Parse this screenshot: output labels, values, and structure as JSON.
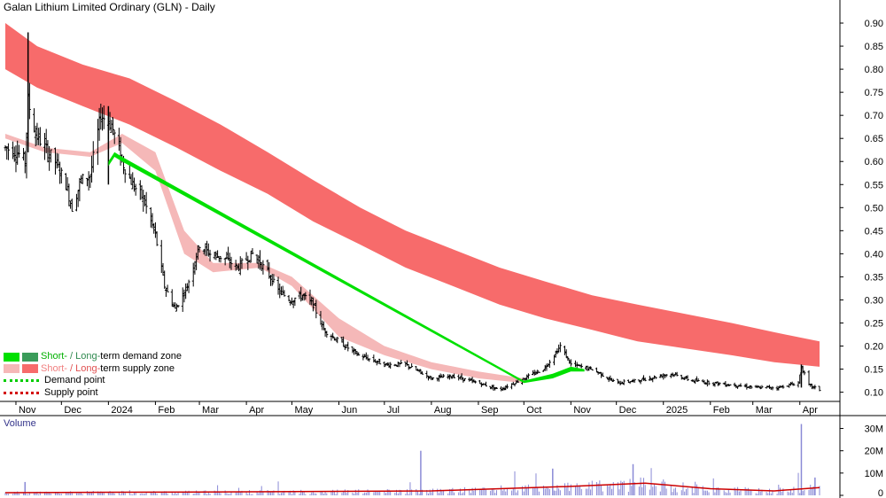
{
  "title": "Galan Lithium Limited Ordinary (GLN) - Daily",
  "volume_label": "Volume",
  "legend": {
    "short_prefix": "Short-",
    "slash_long": " / Long-",
    "demand_zone": "term demand zone",
    "supply_zone": "term supply zone",
    "demand_point": "Demand point",
    "supply_point": "Supply point"
  },
  "colors": {
    "short_demand": "#00e000",
    "long_demand": "#3a9c5a",
    "short_supply": "#f5b8b8",
    "long_supply": "#f76b6b",
    "demand_point": "#00cc00",
    "supply_point": "#d40000",
    "short_demand_text": "#00b000",
    "short_supply_text": "#f08080",
    "volume_bar": "#8a8ad6",
    "volume_ma": "#cc0000"
  },
  "chart_data": {
    "type": "candlestick",
    "title": "Galan Lithium Limited Ordinary (GLN) - Daily",
    "y_ticks": [
      "0.10",
      "0.15",
      "0.20",
      "0.25",
      "0.30",
      "0.35",
      "0.40",
      "0.45",
      "0.50",
      "0.55",
      "0.60",
      "0.65",
      "0.70",
      "0.75",
      "0.80",
      "0.85",
      "0.90"
    ],
    "ylim": [
      0.08,
      0.95
    ],
    "x_labels": [
      "Nov",
      "Dec",
      "2024",
      "Feb",
      "Mar",
      "Apr",
      "May",
      "Jun",
      "Jul",
      "Aug",
      "Sep",
      "Oct",
      "Nov",
      "Dec",
      "2025",
      "Feb",
      "Mar",
      "Apr"
    ],
    "x_range": [
      "2023-10-25",
      "2025-04-14"
    ],
    "month_starts": [
      "2023-11-01",
      "2023-12-01",
      "2024-01-01",
      "2024-02-01",
      "2024-03-01",
      "2024-04-01",
      "2024-05-01",
      "2024-06-01",
      "2024-07-01",
      "2024-08-01",
      "2024-09-01",
      "2024-10-01",
      "2024-11-01",
      "2024-12-01",
      "2025-01-01",
      "2025-02-01",
      "2025-03-01",
      "2025-04-01"
    ],
    "price_path": [
      [
        "2023-10-25",
        0.63
      ],
      [
        "2023-11-02",
        0.62
      ],
      [
        "2023-11-07",
        0.6
      ],
      [
        "2023-11-09",
        0.73
      ],
      [
        "2023-11-14",
        0.66
      ],
      [
        "2023-11-20",
        0.63
      ],
      [
        "2023-11-27",
        0.6
      ],
      [
        "2023-12-04",
        0.55
      ],
      [
        "2023-12-08",
        0.5
      ],
      [
        "2023-12-14",
        0.56
      ],
      [
        "2023-12-20",
        0.57
      ],
      [
        "2023-12-27",
        0.7
      ],
      [
        "2024-01-03",
        0.68
      ],
      [
        "2024-01-10",
        0.6
      ],
      [
        "2024-01-17",
        0.55
      ],
      [
        "2024-01-24",
        0.52
      ],
      [
        "2024-02-01",
        0.44
      ],
      [
        "2024-02-07",
        0.33
      ],
      [
        "2024-02-14",
        0.28
      ],
      [
        "2024-02-22",
        0.33
      ],
      [
        "2024-03-01",
        0.42
      ],
      [
        "2024-03-08",
        0.4
      ],
      [
        "2024-03-18",
        0.39
      ],
      [
        "2024-03-26",
        0.37
      ],
      [
        "2024-04-05",
        0.4
      ],
      [
        "2024-04-15",
        0.36
      ],
      [
        "2024-04-22",
        0.32
      ],
      [
        "2024-04-30",
        0.3
      ],
      [
        "2024-05-08",
        0.31
      ],
      [
        "2024-05-15",
        0.29
      ],
      [
        "2024-05-22",
        0.235
      ],
      [
        "2024-06-01",
        0.21
      ],
      [
        "2024-06-14",
        0.18
      ],
      [
        "2024-07-01",
        0.16
      ],
      [
        "2024-07-15",
        0.16
      ],
      [
        "2024-08-01",
        0.13
      ],
      [
        "2024-08-15",
        0.135
      ],
      [
        "2024-09-01",
        0.12
      ],
      [
        "2024-09-15",
        0.105
      ],
      [
        "2024-10-01",
        0.13
      ],
      [
        "2024-10-14",
        0.15
      ],
      [
        "2024-10-21",
        0.18
      ],
      [
        "2024-10-25",
        0.2
      ],
      [
        "2024-11-01",
        0.16
      ],
      [
        "2024-11-15",
        0.15
      ],
      [
        "2024-12-01",
        0.12
      ],
      [
        "2024-12-15",
        0.125
      ],
      [
        "2025-01-06",
        0.14
      ],
      [
        "2025-01-20",
        0.125
      ],
      [
        "2025-02-03",
        0.12
      ],
      [
        "2025-02-17",
        0.115
      ],
      [
        "2025-03-03",
        0.11
      ],
      [
        "2025-03-17",
        0.11
      ],
      [
        "2025-03-31",
        0.12
      ],
      [
        "2025-04-02",
        0.155
      ],
      [
        "2025-04-07",
        0.115
      ],
      [
        "2025-04-14",
        0.105
      ]
    ],
    "long_term_supply_zone": {
      "dates": [
        "2023-10-25",
        "2023-11-15",
        "2023-12-15",
        "2024-01-15",
        "2024-02-15",
        "2024-03-15",
        "2024-04-15",
        "2024-05-15",
        "2024-06-15",
        "2024-07-15",
        "2024-08-15",
        "2024-09-15",
        "2024-10-15",
        "2024-11-15",
        "2024-12-15",
        "2025-01-15",
        "2025-02-15",
        "2025-03-15",
        "2025-04-14"
      ],
      "upper": [
        0.9,
        0.85,
        0.81,
        0.78,
        0.73,
        0.68,
        0.62,
        0.56,
        0.5,
        0.45,
        0.41,
        0.37,
        0.34,
        0.31,
        0.29,
        0.27,
        0.25,
        0.23,
        0.21
      ],
      "lower": [
        0.8,
        0.76,
        0.72,
        0.68,
        0.63,
        0.58,
        0.53,
        0.47,
        0.42,
        0.37,
        0.33,
        0.29,
        0.26,
        0.235,
        0.21,
        0.195,
        0.18,
        0.165,
        0.155
      ]
    },
    "short_term_supply_zone": {
      "dates": [
        "2023-10-25",
        "2023-11-20",
        "2023-12-20",
        "2024-01-10",
        "2024-02-01",
        "2024-02-20",
        "2024-03-10",
        "2024-04-10",
        "2024-05-01",
        "2024-06-01",
        "2024-07-01",
        "2024-08-01",
        "2024-09-01",
        "2024-10-01"
      ],
      "upper": [
        0.66,
        0.63,
        0.62,
        0.66,
        0.62,
        0.45,
        0.38,
        0.38,
        0.35,
        0.26,
        0.2,
        0.165,
        0.145,
        0.13
      ],
      "lower": [
        0.65,
        0.62,
        0.61,
        0.64,
        0.58,
        0.4,
        0.36,
        0.37,
        0.33,
        0.22,
        0.18,
        0.15,
        0.13,
        0.12
      ]
    },
    "short_term_demand_zone": {
      "dates": [
        "2024-01-01",
        "2024-01-05",
        "2024-01-10",
        "2024-10-01",
        "2024-10-20",
        "2024-11-01",
        "2024-11-10"
      ],
      "upper": [
        0.6,
        0.62,
        0.61,
        0.125,
        0.14,
        0.155,
        0.15
      ],
      "lower": [
        0.59,
        0.61,
        0.6,
        0.12,
        0.13,
        0.145,
        0.145
      ]
    },
    "volume": {
      "y_ticks": [
        "0",
        "10M",
        "20M",
        "30M"
      ],
      "ylim": [
        0,
        33000000
      ],
      "spikes": [
        [
          "2023-11-07",
          6000000
        ],
        [
          "2024-07-25",
          20000000
        ],
        [
          "2024-10-20",
          12000000
        ],
        [
          "2024-12-12",
          14000000
        ],
        [
          "2025-04-02",
          32000000
        ],
        [
          "2025-04-11",
          8000000
        ]
      ],
      "ma": [
        [
          "2023-10-25",
          1200000
        ],
        [
          "2024-03-01",
          1500000
        ],
        [
          "2024-08-01",
          2000000
        ],
        [
          "2024-11-01",
          4000000
        ],
        [
          "2024-12-20",
          5500000
        ],
        [
          "2025-02-01",
          3000000
        ],
        [
          "2025-03-15",
          2000000
        ],
        [
          "2025-04-14",
          3500000
        ]
      ]
    }
  }
}
